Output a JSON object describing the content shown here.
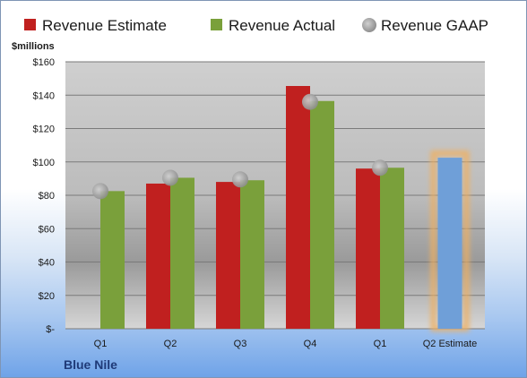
{
  "company": "Blue Nile",
  "chart_data": {
    "type": "bar",
    "ylabel": "$millions",
    "ylim": [
      0,
      160
    ],
    "yticks": [
      {
        "value": 0,
        "label": "$-"
      },
      {
        "value": 20,
        "label": "$20"
      },
      {
        "value": 40,
        "label": "$40"
      },
      {
        "value": 60,
        "label": "$60"
      },
      {
        "value": 80,
        "label": "$80"
      },
      {
        "value": 100,
        "label": "$100"
      },
      {
        "value": 120,
        "label": "$120"
      },
      {
        "value": 140,
        "label": "$140"
      },
      {
        "value": 160,
        "label": "$160"
      }
    ],
    "categories": [
      "Q1",
      "Q2",
      "Q3",
      "Q4",
      "Q1",
      "Q2 Estimate"
    ],
    "series": [
      {
        "name": "Revenue Estimate",
        "color": "#c0201f",
        "values": [
          null,
          87,
          88,
          145.5,
          96,
          102.5
        ],
        "highlight_color": "#6f9fd8"
      },
      {
        "name": "Revenue Actual",
        "color": "#7aa03b",
        "values": [
          82.5,
          90.5,
          89,
          136.5,
          96.5,
          null
        ]
      },
      {
        "name": "Revenue GAAP",
        "color": "#a9a9a9",
        "values": [
          82.5,
          90.5,
          89.5,
          136,
          96.5,
          null
        ]
      }
    ],
    "grid": true,
    "legend": "top"
  }
}
